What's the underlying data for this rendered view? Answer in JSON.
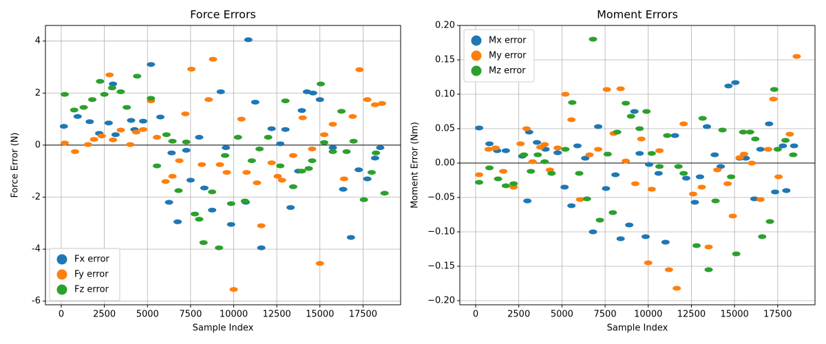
{
  "chart_data": [
    {
      "type": "scatter",
      "title": "Force Errors",
      "x_label": "Sample Index",
      "y_label": "Force Error (N)",
      "xlim": [
        -918,
        19680
      ],
      "ylim": [
        -6.14,
        4.6
      ],
      "xticks": [
        0,
        2500,
        5000,
        7500,
        10000,
        12500,
        15000,
        17500
      ],
      "yticks": [
        -6,
        -4,
        -2,
        0,
        2,
        4
      ],
      "grid": true,
      "reference_line": 0,
      "legend": "lower left",
      "series": [
        {
          "name": "Fx error",
          "color": "#1f77b4",
          "x": [
            150,
            950,
            1650,
            2200,
            2750,
            3000,
            3150,
            4050,
            4250,
            4750,
            5200,
            5750,
            6250,
            6400,
            6750,
            7250,
            7500,
            8000,
            8300,
            8750,
            9250,
            9550,
            9850,
            10700,
            10850,
            11250,
            11600,
            12200,
            12700,
            13000,
            13300,
            13750,
            13950,
            14250,
            14600,
            15000,
            15750,
            16350,
            16800,
            17250,
            17750,
            18200,
            18500
          ],
          "values": [
            0.72,
            1.1,
            0.9,
            0.45,
            0.85,
            2.35,
            0.4,
            0.95,
            0.6,
            0.92,
            3.1,
            1.08,
            -2.2,
            -0.3,
            -2.95,
            -0.2,
            -1.35,
            0.3,
            -1.65,
            -2.5,
            2.05,
            -0.1,
            -3.05,
            -2.2,
            4.05,
            1.65,
            -3.95,
            0.63,
            0.05,
            0.6,
            -2.4,
            -1.0,
            1.33,
            2.05,
            2.0,
            1.75,
            -0.1,
            -1.7,
            -3.55,
            -0.95,
            -1.3,
            -0.5,
            -0.1
          ]
        },
        {
          "name": "Fy error",
          "color": "#ff7f0e",
          "x": [
            200,
            800,
            1550,
            1900,
            2350,
            2800,
            3000,
            3450,
            4000,
            4350,
            4750,
            5200,
            5550,
            6050,
            6450,
            6850,
            7200,
            7550,
            8150,
            8550,
            8800,
            9200,
            9600,
            10000,
            10450,
            10750,
            11350,
            11600,
            12200,
            12550,
            12800,
            13450,
            14000,
            14550,
            15000,
            15250,
            15750,
            16400,
            16900,
            17300,
            17750,
            18200,
            18600
          ],
          "values": [
            0.08,
            -0.25,
            0.02,
            0.22,
            0.35,
            2.7,
            0.2,
            0.58,
            0.02,
            0.5,
            0.6,
            1.7,
            0.3,
            -1.4,
            -1.2,
            -0.6,
            1.2,
            2.92,
            -0.75,
            1.75,
            3.3,
            -0.75,
            -1.05,
            -5.55,
            1.0,
            -1.05,
            -1.45,
            -3.1,
            -0.68,
            -1.2,
            -1.35,
            -0.4,
            1.05,
            -0.15,
            -4.55,
            0.4,
            0.8,
            -1.3,
            1.1,
            2.9,
            1.75,
            1.55,
            1.6
          ]
        },
        {
          "name": "Fz error",
          "color": "#2ca02c",
          "x": [
            200,
            750,
            1300,
            1800,
            2250,
            2500,
            2950,
            3450,
            3800,
            4400,
            5200,
            5550,
            6100,
            6450,
            6800,
            7250,
            7750,
            8000,
            8250,
            8750,
            9150,
            9500,
            9850,
            10250,
            10650,
            11050,
            11500,
            12000,
            12700,
            13000,
            13450,
            13950,
            14350,
            14550,
            15050,
            15250,
            15750,
            16250,
            16550,
            16950,
            17550,
            18000,
            18250,
            18750
          ],
          "values": [
            1.95,
            1.35,
            1.45,
            1.75,
            2.45,
            1.95,
            2.2,
            2.05,
            1.45,
            2.65,
            1.8,
            -0.8,
            0.4,
            0.15,
            -1.75,
            0.12,
            -2.65,
            -2.85,
            -3.75,
            -1.8,
            -3.95,
            -0.4,
            -2.25,
            0.3,
            -2.15,
            -0.6,
            -0.15,
            0.3,
            -0.8,
            1.7,
            -1.6,
            -1.0,
            -0.9,
            -0.6,
            2.35,
            0.1,
            -0.25,
            1.3,
            -0.25,
            0.15,
            -2.1,
            -1.05,
            -0.3,
            -1.85
          ]
        }
      ]
    },
    {
      "type": "scatter",
      "title": "Moment Errors",
      "x_label": "Sample Index",
      "y_label": "Moment Error (Nm)",
      "xlim": [
        -917,
        19660
      ],
      "ylim": [
        -0.206,
        0.2
      ],
      "xticks": [
        0,
        2500,
        5000,
        7500,
        10000,
        12500,
        15000,
        17500
      ],
      "yticks": [
        {
          "value": -0.2,
          "label": "−0.20"
        },
        {
          "value": -0.15,
          "label": "−0.15"
        },
        {
          "value": -0.1,
          "label": "−0.10"
        },
        {
          "value": -0.05,
          "label": "−0.05"
        },
        {
          "value": 0,
          "label": "0.00"
        },
        {
          "value": 0.05,
          "label": "0.05"
        },
        {
          "value": 0.1,
          "label": "0.10"
        },
        {
          "value": 0.15,
          "label": "0.15"
        },
        {
          "value": 0.2,
          "label": "0.20"
        }
      ],
      "grid": true,
      "reference_line": 0,
      "legend": "upper left",
      "series": [
        {
          "name": "Mx error",
          "color": "#1f77b4",
          "x": [
            200,
            800,
            1250,
            1750,
            2700,
            3000,
            3100,
            3550,
            4050,
            4750,
            5150,
            5550,
            5900,
            6350,
            6800,
            7100,
            7550,
            8100,
            8400,
            8900,
            9200,
            9500,
            9850,
            10050,
            10600,
            11000,
            11550,
            12200,
            12700,
            13000,
            13400,
            13850,
            14200,
            14650,
            15050,
            15300,
            15650,
            16150,
            16500,
            17000,
            17350,
            18000,
            18450,
            17800
          ],
          "values": [
            0.051,
            0.028,
            0.018,
            0.018,
            0.01,
            -0.055,
            0.045,
            0.03,
            0.02,
            0.015,
            -0.035,
            -0.062,
            0.025,
            0.007,
            -0.1,
            0.053,
            -0.037,
            -0.017,
            -0.11,
            -0.09,
            0.075,
            0.014,
            -0.107,
            -0.002,
            -0.015,
            -0.115,
            0.04,
            -0.022,
            -0.057,
            -0.02,
            0.053,
            0.012,
            -0.005,
            0.112,
            0.117,
            0.007,
            0.007,
            -0.052,
            0.02,
            0.057,
            -0.042,
            -0.04,
            0.025,
            0.025
          ]
        },
        {
          "name": "My error",
          "color": "#ff7f0e",
          "x": [
            200,
            750,
            1150,
            1600,
            2200,
            2600,
            2950,
            3300,
            3750,
            4000,
            4300,
            4750,
            5200,
            5550,
            6050,
            6600,
            7100,
            7600,
            8000,
            8400,
            8700,
            9250,
            9600,
            10000,
            10200,
            10650,
            11200,
            11650,
            12050,
            12600,
            13100,
            13500,
            14000,
            14600,
            14900,
            15300,
            15550,
            16000,
            16500,
            16950,
            17250,
            17550,
            18200,
            18600
          ],
          "values": [
            -0.017,
            0.02,
            0.022,
            -0.012,
            -0.035,
            0.028,
            0.05,
            0.002,
            0.023,
            0.027,
            -0.01,
            0.022,
            0.1,
            0.063,
            -0.053,
            0.012,
            0.02,
            0.107,
            0.043,
            0.108,
            0.003,
            -0.03,
            0.035,
            -0.145,
            -0.038,
            0.018,
            -0.155,
            -0.182,
            0.057,
            -0.045,
            -0.035,
            -0.122,
            -0.01,
            -0.03,
            -0.077,
            0.008,
            0.013,
            0,
            -0.053,
            0.02,
            0.093,
            -0.02,
            0.042,
            0.155
          ]
        },
        {
          "name": "Mz error",
          "color": "#2ca02c",
          "x": [
            200,
            800,
            1300,
            1750,
            2200,
            2800,
            3200,
            3600,
            4000,
            4400,
            5200,
            5600,
            6000,
            6450,
            6800,
            7200,
            7650,
            7950,
            8200,
            8700,
            9000,
            9500,
            9900,
            10200,
            10650,
            11100,
            11750,
            12050,
            12800,
            13150,
            13500,
            13900,
            14300,
            14800,
            15100,
            15500,
            15900,
            16200,
            16600,
            17050,
            17300,
            17500,
            17950,
            18400
          ],
          "values": [
            -0.028,
            -0.007,
            -0.023,
            -0.033,
            -0.03,
            0.012,
            -0.012,
            0.012,
            0.002,
            -0.015,
            0.02,
            0.088,
            -0.015,
            -0.052,
            0.18,
            -0.083,
            0.013,
            -0.072,
            0.045,
            0.087,
            0.068,
            0.05,
            0.075,
            0.014,
            -0.005,
            0.04,
            -0.005,
            -0.015,
            -0.12,
            0.065,
            -0.155,
            -0.055,
            0.048,
            -0.02,
            -0.132,
            0.045,
            0.045,
            0.035,
            -0.107,
            -0.085,
            0.107,
            0.02,
            0.033,
            0.012
          ]
        }
      ]
    }
  ]
}
